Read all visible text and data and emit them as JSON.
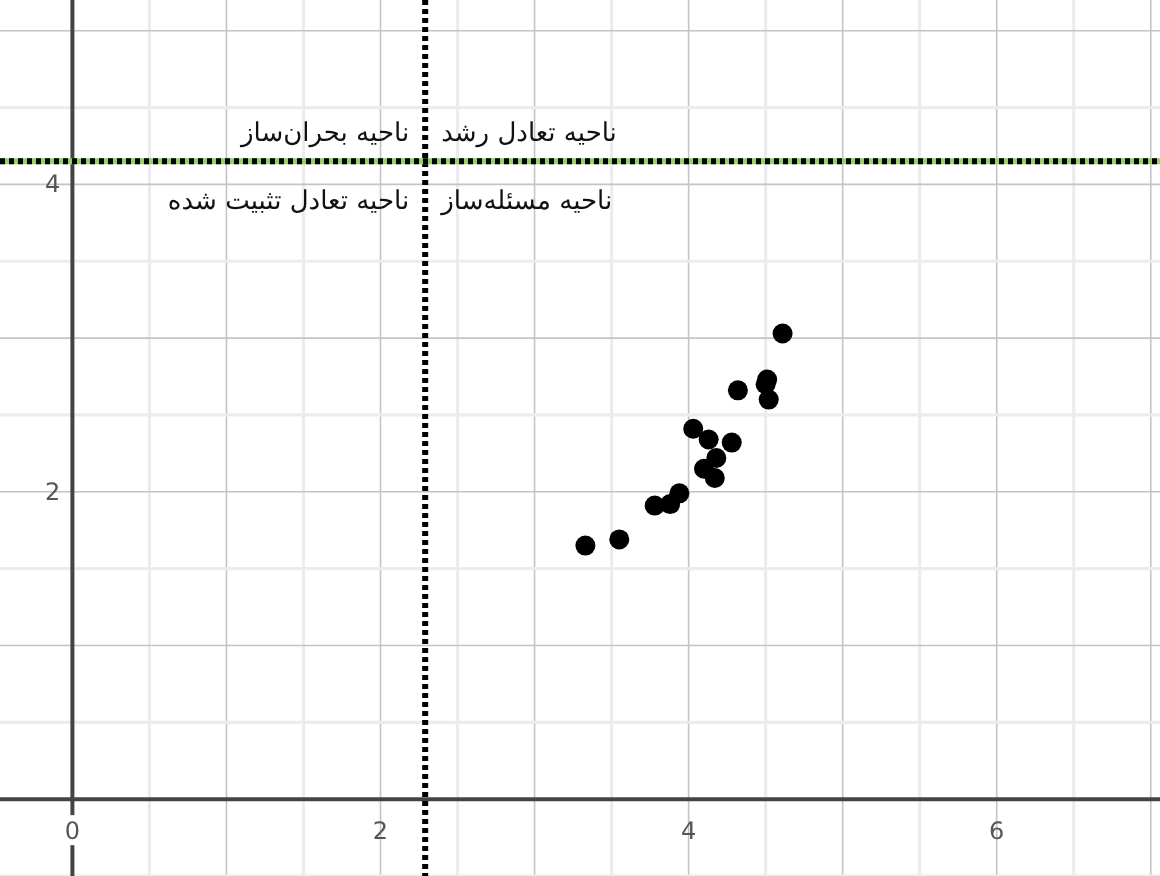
{
  "chart_data": {
    "type": "scatter",
    "color": "#000000",
    "marker": "circle",
    "x": [
      3.33,
      3.55,
      3.78,
      3.88,
      3.94,
      4.03,
      4.13,
      4.28,
      4.18,
      4.1,
      4.17,
      4.32,
      4.51,
      4.5,
      4.52,
      4.61
    ],
    "values": [
      1.65,
      1.69,
      1.91,
      1.92,
      1.99,
      2.41,
      2.34,
      2.32,
      2.22,
      2.15,
      2.09,
      2.66,
      2.73,
      2.7,
      2.6,
      3.03
    ],
    "xlim": [
      -0.47,
      7.06
    ],
    "ylim": [
      -0.5,
      5.2
    ],
    "xticks": [
      0,
      2,
      4,
      6
    ],
    "yticks": [
      2,
      4
    ],
    "grid": true,
    "ref_lines": [
      {
        "axis": "x",
        "value": 2.29,
        "color": "#000000",
        "line_style": "dotted"
      },
      {
        "axis": "y",
        "value": 4.15,
        "color": "#91d166",
        "line_style": "solid"
      },
      {
        "axis": "y",
        "value": 4.15,
        "color": "#000000",
        "line_style": "dotted"
      }
    ],
    "annotations": [
      "ناحیه تعادل رشد",
      "ناحیه بحران‌ساز",
      "ناحیه تعادل تثبیت شده",
      "ناحیه مسئله‌ساز"
    ]
  }
}
